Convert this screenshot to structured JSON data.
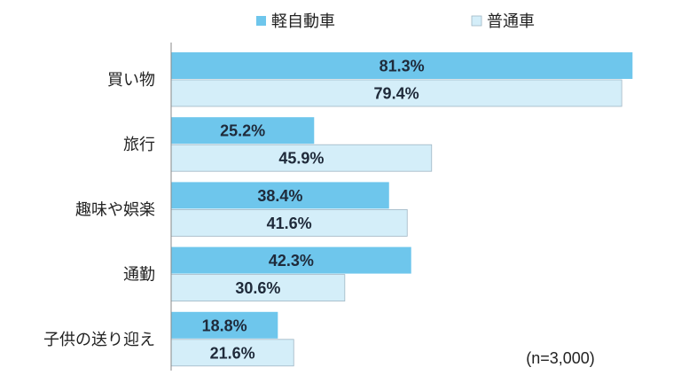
{
  "chart_data": {
    "type": "bar",
    "orientation": "horizontal",
    "categories": [
      "買い物",
      "旅行",
      "趣味や娯楽",
      "通勤",
      "子供の送り迎え"
    ],
    "series": [
      {
        "name": "軽自動車",
        "values": [
          81.3,
          25.2,
          38.4,
          42.3,
          18.8
        ],
        "color": "#6ec6ec"
      },
      {
        "name": "普通車",
        "values": [
          79.4,
          45.9,
          41.6,
          30.6,
          21.6
        ],
        "color": "#d4eef9"
      }
    ],
    "value_suffix": "%",
    "xlim": [
      0,
      100
    ],
    "grid": false,
    "legend_position": "top-center",
    "note": "(n=3,000)"
  }
}
